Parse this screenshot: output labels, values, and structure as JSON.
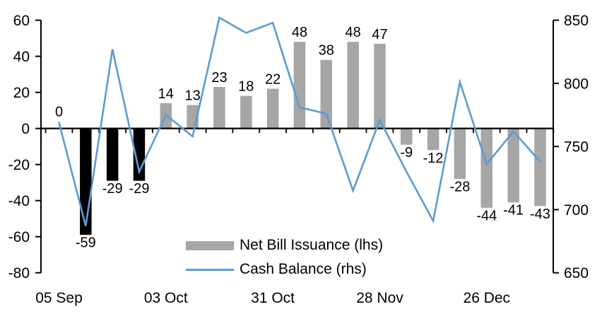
{
  "colors": {
    "background": "#FFFFFF",
    "bar_gray": "#A6A6A6",
    "bar_black": "#000000",
    "line_blue": "#5B9BD5",
    "axis_black": "#000000",
    "text_black": "#000000"
  },
  "chart_data": {
    "type": "combo_bar_line",
    "n_points": 19,
    "x_axis": {
      "visible_tick_labels": [
        {
          "index": 0,
          "label": "05 Sep"
        },
        {
          "index": 4,
          "label": "03 Oct"
        },
        {
          "index": 8,
          "label": "31 Oct"
        },
        {
          "index": 12,
          "label": "28 Nov"
        },
        {
          "index": 16,
          "label": "26 Dec"
        }
      ]
    },
    "left_axis": {
      "min": -80,
      "max": 60,
      "step": 20,
      "tick_labels": [
        "60",
        "40",
        "20",
        "0",
        "-20",
        "-40",
        "-60",
        "-80"
      ]
    },
    "right_axis": {
      "min": 650,
      "max": 850,
      "step": 50,
      "tick_labels": [
        "850",
        "800",
        "750",
        "700",
        "650"
      ]
    },
    "series": [
      {
        "name": "Net Bill Issuance (lhs)",
        "type": "bar",
        "axis": "left",
        "values": [
          0,
          -59,
          -29,
          -29,
          14,
          13,
          23,
          18,
          22,
          48,
          38,
          48,
          47,
          -9,
          -12,
          -28,
          -44,
          -41,
          -43
        ],
        "value_labels": [
          "0",
          "-59",
          "-29",
          "-29",
          "14",
          "13",
          "23",
          "18",
          "22",
          "48",
          "38",
          "48",
          "47",
          "-9",
          "-12",
          "-28",
          "-44",
          "-41",
          "-43"
        ],
        "black_bar_indices": [
          0,
          1,
          2,
          3
        ]
      },
      {
        "name": "Cash Balance (rhs)",
        "type": "line",
        "axis": "right",
        "values": [
          769,
          687,
          827,
          730,
          775,
          758,
          852,
          840,
          848,
          781,
          776,
          715,
          771,
          730,
          691,
          801,
          736,
          762,
          738
        ]
      }
    ],
    "legend": {
      "items": [
        {
          "label": "Net Bill Issuance (lhs)",
          "swatch": "bar"
        },
        {
          "label": "Cash Balance (rhs)",
          "swatch": "line"
        }
      ]
    }
  }
}
